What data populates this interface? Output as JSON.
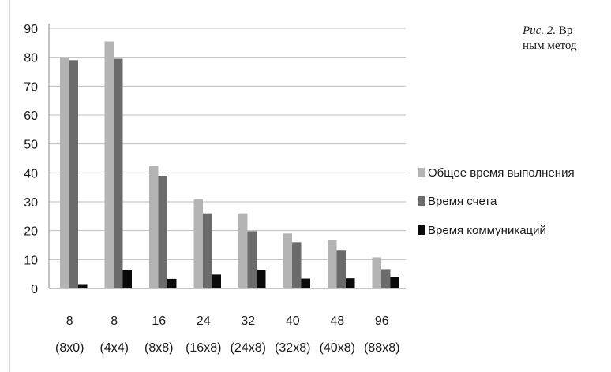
{
  "caption": {
    "fig_label": "Рис. 2.",
    "line1_rest": " Вр",
    "line2": "ным метод"
  },
  "chart_data": {
    "type": "bar",
    "title": "",
    "xlabel": "",
    "ylabel": "",
    "ylim": [
      0,
      90
    ],
    "yticks": [
      0,
      10,
      20,
      30,
      40,
      50,
      60,
      70,
      80,
      90
    ],
    "grid": true,
    "legend_position": "right",
    "categories": [
      {
        "top": "8",
        "bottom": "(8x0)"
      },
      {
        "top": "8",
        "bottom": "(4x4)"
      },
      {
        "top": "16",
        "bottom": "(8x8)"
      },
      {
        "top": "24",
        "bottom": "(16x8)"
      },
      {
        "top": "32",
        "bottom": "(24x8)"
      },
      {
        "top": "40",
        "bottom": "(32x8)"
      },
      {
        "top": "48",
        "bottom": "(40x8)"
      },
      {
        "top": "96",
        "bottom": "(88x8)"
      }
    ],
    "series": [
      {
        "name": "Общее время выполнения",
        "color": "#b4b4b4",
        "values": [
          80,
          85.5,
          42.3,
          30.8,
          26,
          19,
          16.8,
          10.8
        ]
      },
      {
        "name": "Время счета",
        "color": "#6b6b6b",
        "values": [
          79,
          79.5,
          39,
          26,
          19.8,
          16,
          13.3,
          6.7
        ]
      },
      {
        "name": "Время коммуникаций",
        "color": "#0a0a0a",
        "values": [
          1.5,
          6.3,
          3.3,
          4.8,
          6.3,
          3.4,
          3.5,
          4
        ]
      }
    ]
  }
}
